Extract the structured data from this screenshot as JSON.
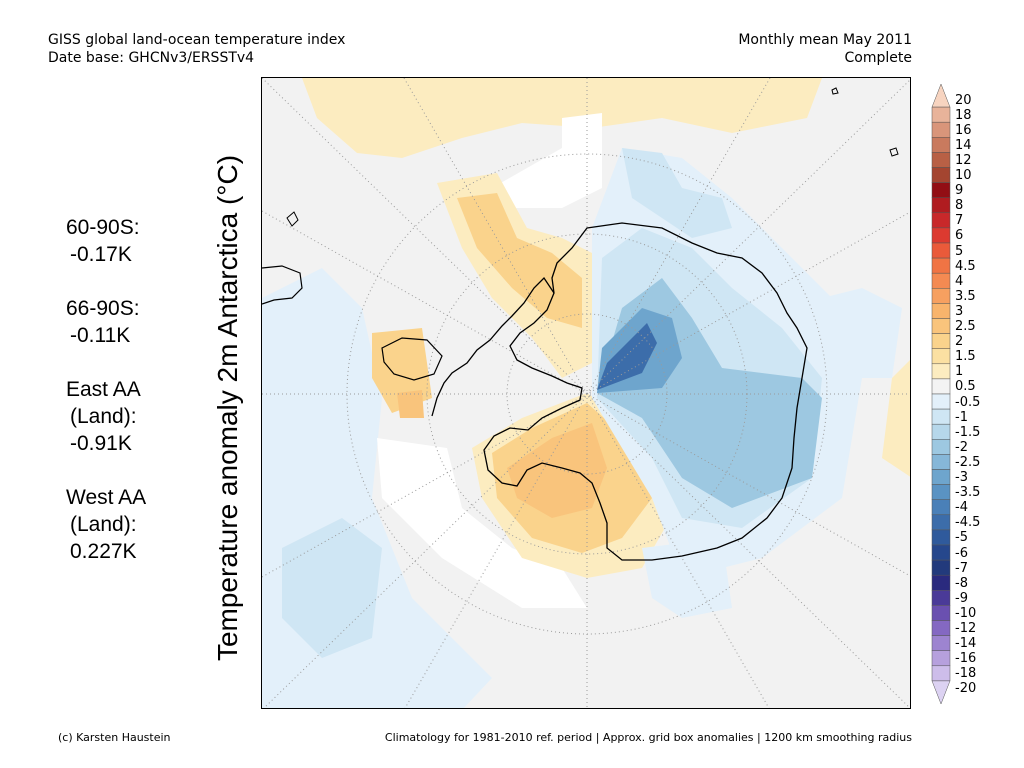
{
  "header": {
    "title": "GISS global land-ocean temperature index",
    "database": "Date base: GHCNv3/ERSSTv4",
    "period": "Monthly mean May 2011",
    "status": "Complete"
  },
  "y_axis_label": "Temperature anomaly 2m Antarctica (°C)",
  "stats": [
    {
      "lines": [
        "60-90S:",
        "-0.17K"
      ]
    },
    {
      "lines": [
        "66-90S:",
        "-0.11K"
      ]
    },
    {
      "lines": [
        "East AA",
        "(Land):",
        "-0.91K"
      ]
    },
    {
      "lines": [
        "West AA",
        "(Land):",
        "0.227K"
      ]
    }
  ],
  "colorbar": {
    "labels": [
      "20",
      "18",
      "16",
      "14",
      "12",
      "10",
      "9",
      "8",
      "7",
      "6",
      "5",
      "4.5",
      "4",
      "3.5",
      "3",
      "2.5",
      "2",
      "1.5",
      "1",
      "0.5",
      "-0.5",
      "-1",
      "-1.5",
      "-2",
      "-2.5",
      "-3",
      "-3.5",
      "-4",
      "-4.5",
      "-5",
      "-6",
      "-7",
      "-8",
      "-9",
      "-10",
      "-12",
      "-14",
      "-16",
      "-18",
      "-20"
    ],
    "colors": [
      "#f7d4c0",
      "#e8b39a",
      "#d9957a",
      "#c97a5e",
      "#b86045",
      "#a44530",
      "#920e14",
      "#b01c20",
      "#c8282a",
      "#dc3a30",
      "#ea5a3a",
      "#f07444",
      "#f48a52",
      "#f6a060",
      "#f8b46c",
      "#f9c47c",
      "#fad38c",
      "#fbe0a2",
      "#fcecc0",
      "#f3f3f3",
      "#e3f0fa",
      "#cfe6f4",
      "#b6d7ea",
      "#9dc8e1",
      "#86b7d8",
      "#6ea5cd",
      "#5a93c3",
      "#4a80b8",
      "#3c6daa",
      "#2f5a9c",
      "#26478c",
      "#223a7c",
      "#2a2a7e",
      "#4a3a98",
      "#6a50b0",
      "#8468c2",
      "#9d84d0",
      "#b6a0dd",
      "#cdbdea",
      "#dcd2f2"
    ]
  },
  "footer": {
    "credit": "(c) Karsten Haustein",
    "note": "Climatology for 1981-2010 ref. period | Approx. grid box anomalies | 1200 km smoothing radius"
  }
}
